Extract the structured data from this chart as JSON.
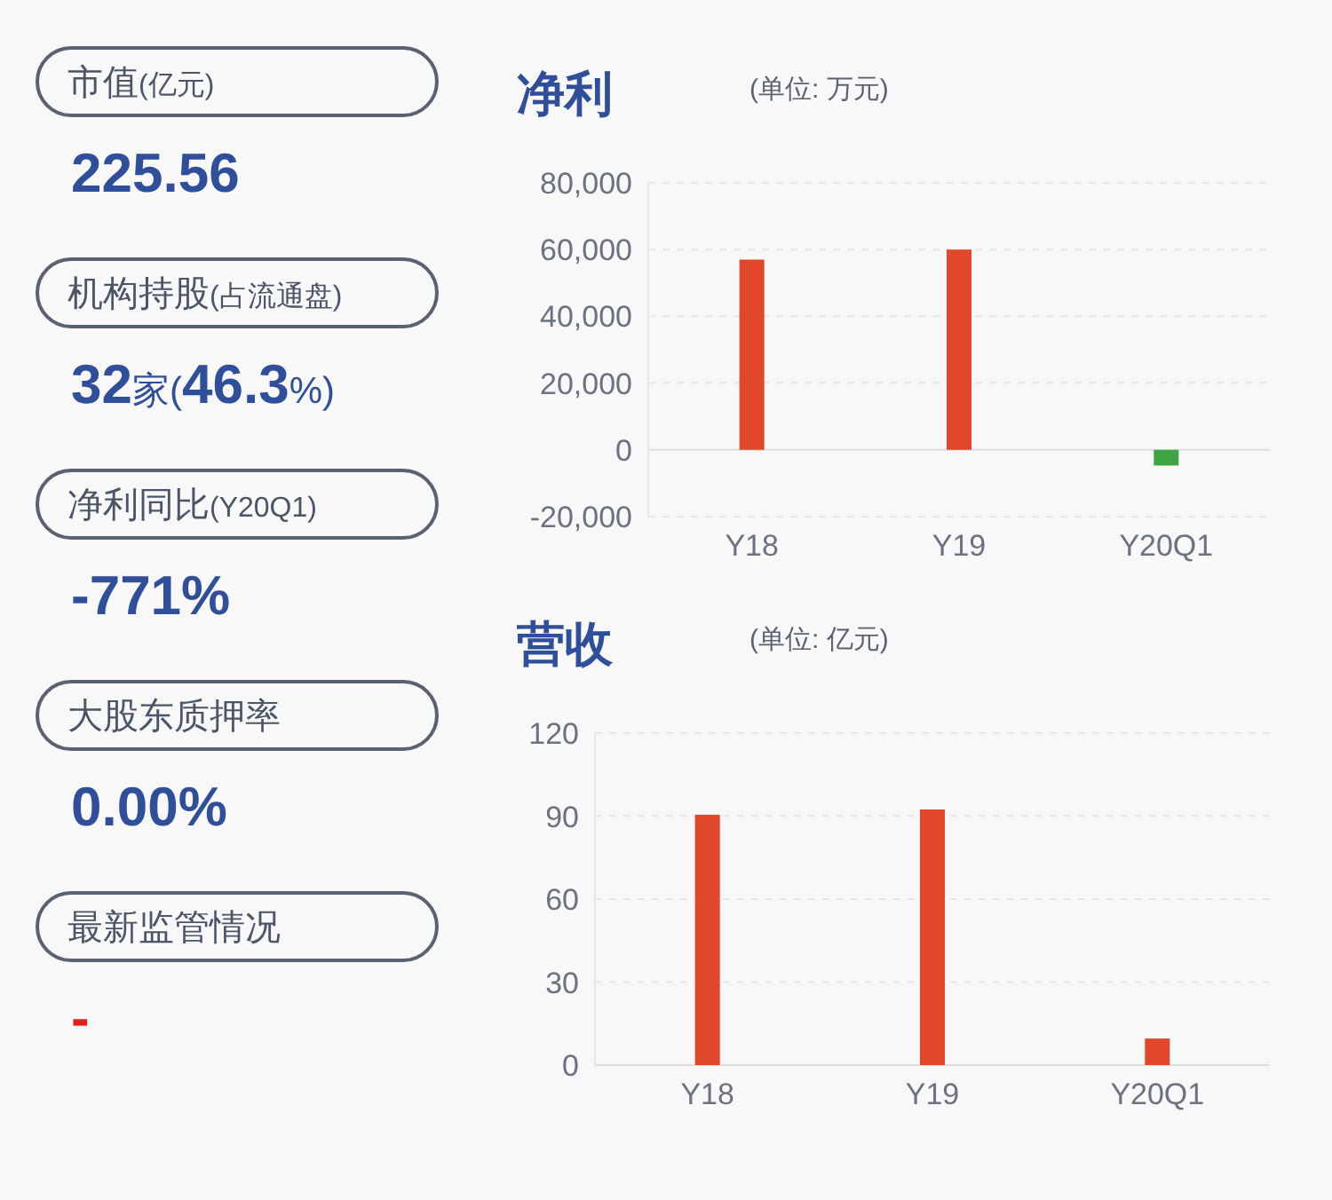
{
  "chart_data": [
    {
      "type": "other",
      "annotations": [
        "市值(亿元)",
        "225.56",
        "机构持股(占流通盘)",
        "32家(46.3%)",
        "净利同比(Y20Q1)",
        "-771%",
        "大股东质押率",
        "0.00%",
        "最新监管情况",
        "-"
      ],
      "colors": [
        "#4a5568",
        "#2f4f9a",
        "#4a5568",
        "#2f4f9a",
        "#4a5568",
        "#2f4f9a",
        "#4a5568",
        "#2f4f9a",
        "#4a5568",
        "#e02020"
      ]
    },
    {
      "type": "bar",
      "title": "净利",
      "subtitle": "(单位: 万元)",
      "categories": [
        "Y18",
        "Y19",
        "Y20Q1"
      ],
      "values": [
        57000,
        60000,
        -4700
      ],
      "colors": [
        "#e0472b",
        "#e0472b",
        "#3da543"
      ],
      "ylim": [
        -20000,
        80000
      ],
      "yticks": [
        {
          "value": -20000,
          "label": "-20,000"
        },
        0,
        {
          "value": 20000,
          "label": "20,000"
        },
        {
          "value": 40000,
          "label": "40,000"
        },
        {
          "value": 60000,
          "label": "60,000"
        },
        {
          "value": 80000,
          "label": "80,000"
        }
      ],
      "grid": "y"
    },
    {
      "type": "bar",
      "title": "营收",
      "subtitle": "(单位: 亿元)",
      "categories": [
        "Y18",
        "Y19",
        "Y20Q1"
      ],
      "values": [
        90.5,
        92.4,
        9.6
      ],
      "colors": [
        "#e0472b",
        "#e0472b",
        "#e0472b"
      ],
      "ylim": [
        0,
        120
      ],
      "yticks": [
        0,
        30,
        60,
        90,
        120
      ],
      "grid": "y"
    }
  ]
}
